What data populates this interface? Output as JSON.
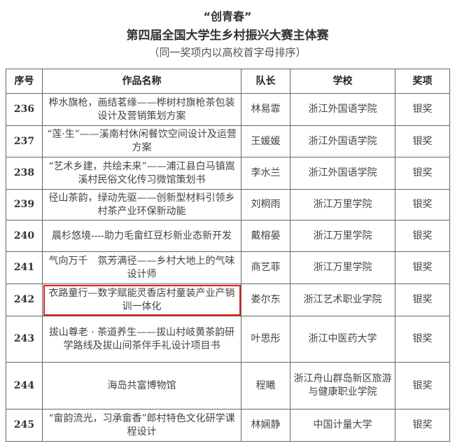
{
  "title": {
    "line1": "“创青春”",
    "line2": "第四届全国大学生乡村振兴大赛主体赛",
    "line3": "（同一奖项内以高校首字母排序）"
  },
  "table": {
    "headers": [
      "序号",
      "作品名称",
      "队长",
      "学校",
      "奖项"
    ],
    "rows": [
      {
        "no": "236",
        "name": "桦水旗枪，画结茗缘——桦树村旗枪茶包装设计及营销策划方案",
        "captain": "林易霏",
        "school": "浙江外国语学院",
        "award": "银奖"
      },
      {
        "no": "237",
        "name": "“莲·生”——溪南村休闲餐饮空间设计及运营方案",
        "captain": "王媛媛",
        "school": "浙江外国语学院",
        "award": "银奖"
      },
      {
        "no": "238",
        "name": "“艺术乡建，共绘未来”——浦江县白马镇嵩溪村民俗文化传习微馆策划书",
        "captain": "李水兰",
        "school": "浙江外国语学院",
        "award": "银奖"
      },
      {
        "no": "239",
        "name": "径山茶韵，绿动先驱——创新型材料引领乡村茶产业环保新动能",
        "captain": "刘桐雨",
        "school": "浙江万里学院",
        "award": "银奖"
      },
      {
        "no": "240",
        "name": "晨杉悠境----助力毛畲红豆杉新业态新开发",
        "captain": "戴榕晏",
        "school": "浙江万里学院",
        "award": "银奖"
      },
      {
        "no": "241",
        "name": "气向万千　氛芳满径——乡村大地上的气味设计师",
        "captain": "商艺菲",
        "school": "浙江万里学院",
        "award": "银奖"
      },
      {
        "no": "242",
        "name": "衣路童行—数字赋能灵香店村童装产业产销训一体化",
        "captain": "娄尔东",
        "school": "浙江艺术职业学院",
        "award": "银奖",
        "highlighted": true
      },
      {
        "no": "243",
        "name": "拔山尊老 · 茶道养生——拔山村岐黄茶韵研学路线及拔山间茶伴手礼设计项目书",
        "captain": "叶思彤",
        "school": "浙江中医药大学",
        "award": "银奖"
      },
      {
        "no": "244",
        "name": "海岛共富博物馆",
        "captain": "程曦",
        "school": "浙江舟山群岛新区旅游与健康职业学院",
        "award": "银奖"
      },
      {
        "no": "245",
        "name": "“畲韵流光，习承畲香”郎村特色文化研学课程设计",
        "captain": "林娴静",
        "school": "中国计量大学",
        "award": "银奖"
      }
    ]
  },
  "highlight_color": "#e02020"
}
